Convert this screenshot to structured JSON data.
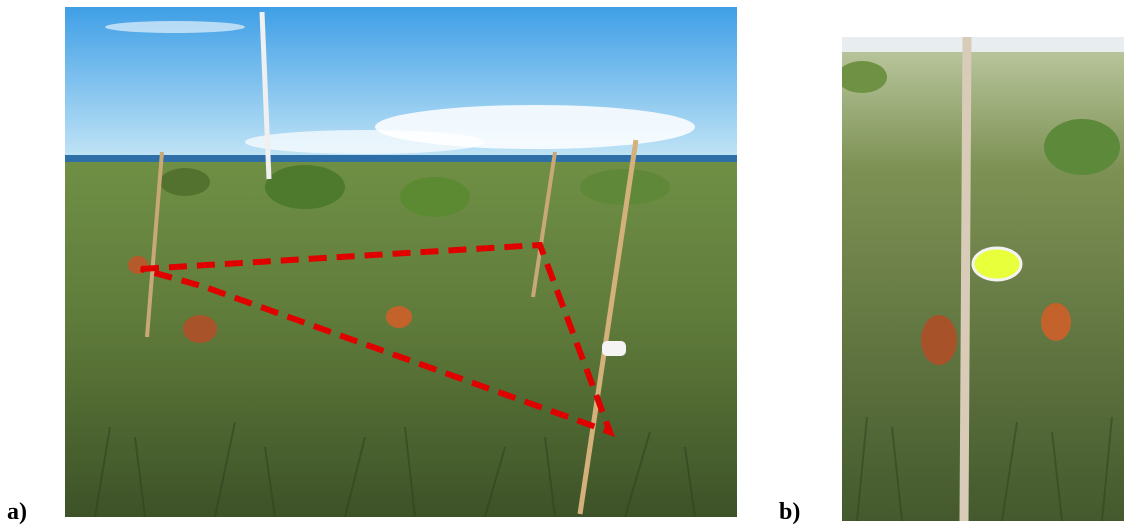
{
  "figure": {
    "panel_a": {
      "label": "a)"
    },
    "panel_b": {
      "label": "b)"
    }
  },
  "colors": {
    "sky_top": "#4aa6e8",
    "sky_bottom": "#bfe2f5",
    "vegetation_dark": "#3f5a2a",
    "vegetation_light": "#8aa35a",
    "termite_mound": "#c4622c",
    "plot_outline": "#e00000",
    "trap_bowl": "#e8ff3c"
  }
}
